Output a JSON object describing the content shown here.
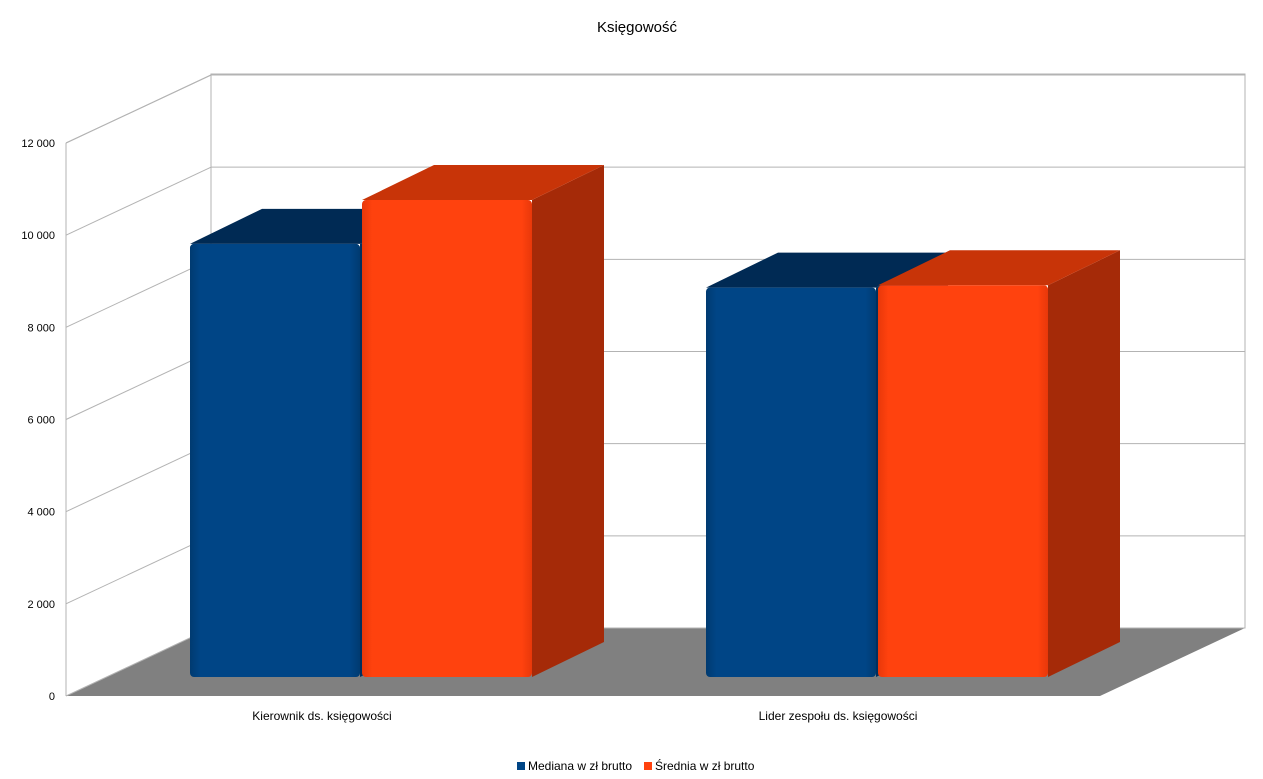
{
  "chart_data": {
    "type": "bar",
    "title": "Księgowość",
    "categories": [
      "Kierownik ds. księgowości",
      "Lider zespołu ds. księgowości"
    ],
    "series": [
      {
        "name": "Mediana w zł brutto",
        "values": [
          9400,
          8450
        ]
      },
      {
        "name": "Średnia w zł brutto",
        "values": [
          10350,
          8500
        ]
      }
    ],
    "ylim": [
      0,
      12000
    ],
    "yticks": [
      0,
      2000,
      4000,
      6000,
      8000,
      10000,
      12000
    ],
    "ytick_labels": [
      "0",
      "2 000",
      "4 000",
      "6 000",
      "8 000",
      "10 000",
      "12 000"
    ],
    "xlabel": "",
    "ylabel": "",
    "grid": true,
    "style": "3d",
    "legend_position": "bottom",
    "colors": {
      "series": [
        "#004586",
        "#ff420e"
      ],
      "floor": "#808080",
      "grid": "#b3b3b3"
    }
  }
}
